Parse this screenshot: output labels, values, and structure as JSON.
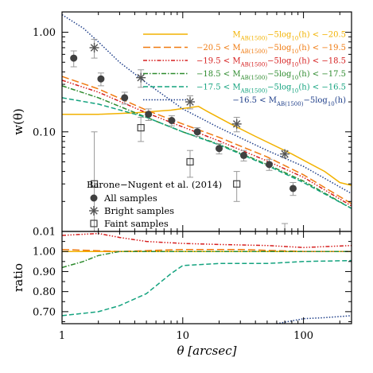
{
  "chart_data": [
    {
      "type": "line",
      "panel": "top",
      "xscale": "log",
      "yscale": "log",
      "xlim": [
        1,
        250
      ],
      "ylim": [
        0.01,
        1.6
      ],
      "ylabel": "w(θ)",
      "xlabel": "θ [arcsec]",
      "yticks": [
        "0.01",
        "0.10",
        "1.00"
      ],
      "xticks": [
        "1",
        "10",
        "100"
      ],
      "legend_position": "top-right",
      "series": [
        {
          "name": "M_AB(1500)−5log10(h) < −20.5",
          "legend_html": "M<tspan baseline-shift='sub' font-size='7'>AB(1500)</tspan>−5log<tspan baseline-shift='sub' font-size='7'>10</tspan>(h) &lt; −20.5",
          "color": "#f2b200",
          "dash": "",
          "x": [
            1,
            2,
            4,
            8,
            13.5,
            16,
            25,
            40,
            80,
            150,
            200,
            250
          ],
          "y": [
            0.15,
            0.15,
            0.155,
            0.165,
            0.18,
            0.16,
            0.12,
            0.09,
            0.06,
            0.04,
            0.031,
            0.029
          ]
        },
        {
          "name": "−20.5 < M_AB(1500)−5log10(h) < −19.5",
          "legend_html": "−20.5 &lt; M<tspan baseline-shift='sub' font-size='7'>AB(1500)</tspan>−5log<tspan baseline-shift='sub' font-size='7'>10</tspan>(h) &lt; −19.5",
          "color": "#f07a10",
          "dash": "9 4",
          "x": [
            1,
            2,
            5,
            10,
            20,
            50,
            100,
            250
          ],
          "y": [
            0.36,
            0.27,
            0.165,
            0.12,
            0.088,
            0.056,
            0.037,
            0.019
          ]
        },
        {
          "name": "−19.5 < M_AB(1500)−5log10(h) < −18.5",
          "legend_html": "−19.5 &lt; M<tspan baseline-shift='sub' font-size='7'>AB(1500)</tspan>−5log<tspan baseline-shift='sub' font-size='7'>10</tspan>(h) &lt; −18.5",
          "color": "#d62020",
          "dash": "5 2 1.5 2 1.5 2 1.5 2",
          "x": [
            1,
            2,
            5,
            10,
            20,
            50,
            100,
            250
          ],
          "y": [
            0.33,
            0.25,
            0.155,
            0.112,
            0.081,
            0.051,
            0.035,
            0.018
          ]
        },
        {
          "name": "−18.5 < M_AB(1500)−5log10(h) < −17.5",
          "legend_html": "−18.5 &lt; M<tspan baseline-shift='sub' font-size='7'>AB(1500)</tspan>−5log<tspan baseline-shift='sub' font-size='7'>10</tspan>(h) &lt; −17.5",
          "color": "#2e8b2e",
          "dash": "6 2 1.5 2",
          "x": [
            1,
            2,
            5,
            10,
            20,
            50,
            100,
            250
          ],
          "y": [
            0.29,
            0.22,
            0.14,
            0.1,
            0.075,
            0.047,
            0.032,
            0.017
          ]
        },
        {
          "name": "−17.5 < M_AB(1500)−5log10(h) < −16.5",
          "legend_html": "−17.5 &lt; M<tspan baseline-shift='sub' font-size='7'>AB(1500)</tspan>−5log<tspan baseline-shift='sub' font-size='7'>10</tspan>(h) &lt; −16.5",
          "color": "#14a37f",
          "dash": "6 3",
          "x": [
            1,
            2,
            5,
            10,
            20,
            50,
            100,
            250
          ],
          "y": [
            0.22,
            0.19,
            0.14,
            0.1,
            0.074,
            0.046,
            0.031,
            0.017
          ]
        },
        {
          "name": "−16.5 < M_AB(1500)−5log10(h)",
          "legend_html": "−16.5 &lt; M<tspan baseline-shift='sub' font-size='7'>AB(1500)</tspan>−5log<tspan baseline-shift='sub' font-size='7'>10</tspan>(h)",
          "color": "#1f3f8a",
          "dash": "1.5 2",
          "x": [
            1,
            1.5,
            2,
            3,
            5,
            10,
            20,
            50,
            100,
            250
          ],
          "y": [
            1.5,
            1.1,
            0.8,
            0.5,
            0.31,
            0.17,
            0.11,
            0.065,
            0.045,
            0.024
          ]
        }
      ],
      "observations": {
        "title": "Barone−Nugent et al. (2014)",
        "all": {
          "label": "All samples",
          "x": [
            1.25,
            2.1,
            3.3,
            5.2,
            8.1,
            13.2,
            20,
            32,
            52,
            82
          ],
          "y": [
            0.55,
            0.34,
            0.22,
            0.15,
            0.13,
            0.1,
            0.068,
            0.058,
            0.047,
            0.027
          ],
          "err": [
            0.1,
            0.05,
            0.03,
            0.02,
            0.015,
            0.01,
            0.008,
            0.007,
            0.006,
            0.004
          ]
        },
        "bright": {
          "label": "Bright samples",
          "x": [
            1.85,
            4.5,
            11.5,
            28,
            70
          ],
          "y": [
            0.7,
            0.35,
            0.2,
            0.12,
            0.06
          ],
          "err": [
            0.15,
            0.07,
            0.03,
            0.02,
            0.005
          ]
        },
        "faint": {
          "label": "Faint samples",
          "x": [
            1.85,
            4.5,
            11.5,
            28,
            70
          ],
          "y": [
            0.03,
            0.11,
            0.05,
            0.03,
            0.009
          ],
          "err": [
            0.07,
            0.03,
            0.015,
            0.01,
            0.003
          ]
        }
      }
    },
    {
      "type": "line",
      "panel": "bottom",
      "xscale": "log",
      "xlim": [
        1,
        250
      ],
      "ylim": [
        0.64,
        1.1
      ],
      "ylabel": "ratio",
      "yticks": [
        "0.70",
        "0.80",
        "0.90",
        "1.00"
      ],
      "series": [
        {
          "color": "#f2b200",
          "dash": "",
          "x": [
            1,
            250
          ],
          "y": [
            1.0,
            1.0
          ]
        },
        {
          "color": "#f07a10",
          "dash": "9 4",
          "x": [
            1,
            3,
            10,
            30,
            100,
            250
          ],
          "y": [
            1.01,
            1.0,
            1.01,
            1.01,
            1.0,
            1.0
          ]
        },
        {
          "color": "#d62020",
          "dash": "5 2 1.5 2 1.5 2 1.5 2",
          "x": [
            1,
            2,
            3,
            5,
            10,
            20,
            50,
            100,
            250
          ],
          "y": [
            1.08,
            1.09,
            1.07,
            1.05,
            1.04,
            1.035,
            1.03,
            1.02,
            1.03
          ]
        },
        {
          "color": "#2e8b2e",
          "dash": "6 2 1.5 2",
          "x": [
            1,
            1.5,
            2,
            3,
            5,
            10,
            30,
            100,
            250
          ],
          "y": [
            0.92,
            0.95,
            0.98,
            1.0,
            1.0,
            1.0,
            1.0,
            1.0,
            1.0
          ]
        },
        {
          "color": "#14a37f",
          "dash": "6 3",
          "x": [
            1,
            2,
            3,
            5,
            8,
            10,
            20,
            50,
            100,
            250
          ],
          "y": [
            0.68,
            0.7,
            0.73,
            0.79,
            0.89,
            0.93,
            0.94,
            0.94,
            0.95,
            0.955
          ]
        },
        {
          "color": "#1f3f8a",
          "dash": "1.5 2",
          "x": [
            60,
            100,
            150,
            250
          ],
          "y": [
            0.64,
            0.665,
            0.67,
            0.68
          ]
        }
      ]
    }
  ]
}
